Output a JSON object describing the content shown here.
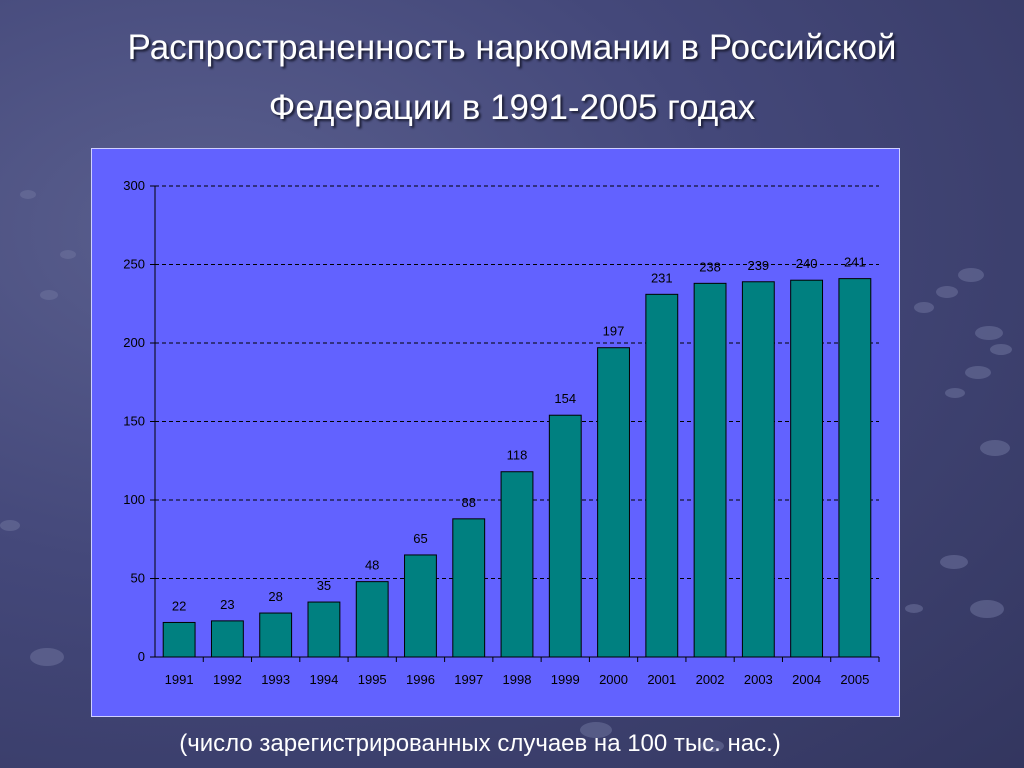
{
  "slide": {
    "title_line1": "Распространенность наркомании в Российской",
    "title_line2": "Федерации в 1991-2005 годах",
    "caption": "(число зарегистрированных случаев на 100 тыс. нас.)"
  },
  "colors": {
    "bar": "#008080",
    "plot_background": "#6262ff",
    "slide_background": "#44487a"
  },
  "chart_data": {
    "type": "bar",
    "categories": [
      "1991",
      "1992",
      "1993",
      "1994",
      "1995",
      "1996",
      "1997",
      "1998",
      "1999",
      "2000",
      "2001",
      "2002",
      "2003",
      "2004",
      "2005"
    ],
    "values": [
      22,
      23,
      28,
      35,
      48,
      65,
      88,
      118,
      154,
      197,
      231,
      238,
      239,
      240,
      241
    ],
    "ylim": [
      0,
      300
    ],
    "yticks": [
      0,
      50,
      100,
      150,
      200,
      250,
      300
    ],
    "grid": true
  }
}
